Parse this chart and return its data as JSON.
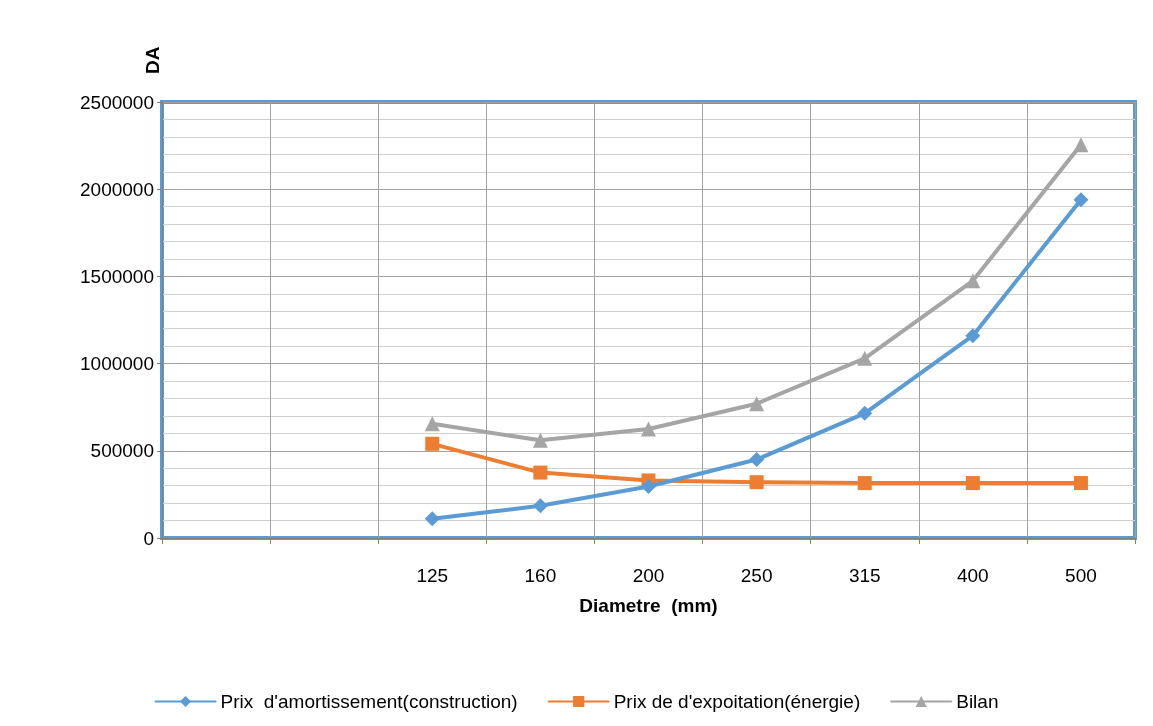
{
  "chart_data": {
    "type": "line",
    "xlabel": "Diametre  (mm)",
    "ylabel": "DA",
    "categories": [
      null,
      null,
      "125",
      "160",
      "200",
      "250",
      "315",
      "400",
      "500"
    ],
    "series": [
      {
        "name": "Prix  d'amortissement(construction)",
        "color": "#5b9bd5",
        "marker": "diamond",
        "values": [
          null,
          null,
          110000,
          185000,
          295000,
          450000,
          715000,
          1160000,
          1940000
        ]
      },
      {
        "name": "Prix de d'expoitation(énergie)",
        "color": "#ed7d31",
        "marker": "square",
        "values": [
          null,
          null,
          540000,
          375000,
          330000,
          320000,
          315000,
          315000,
          315000
        ]
      },
      {
        "name": "Bilan",
        "color": "#a5a5a5",
        "marker": "triangle",
        "values": [
          null,
          null,
          655000,
          560000,
          625000,
          770000,
          1030000,
          1475000,
          2255000
        ]
      }
    ],
    "ylim": [
      0,
      2500000
    ],
    "yticks": [
      0,
      500000,
      1000000,
      1500000,
      2000000,
      2500000
    ],
    "grid": true,
    "legend": "bottom",
    "line_style": "solid"
  }
}
